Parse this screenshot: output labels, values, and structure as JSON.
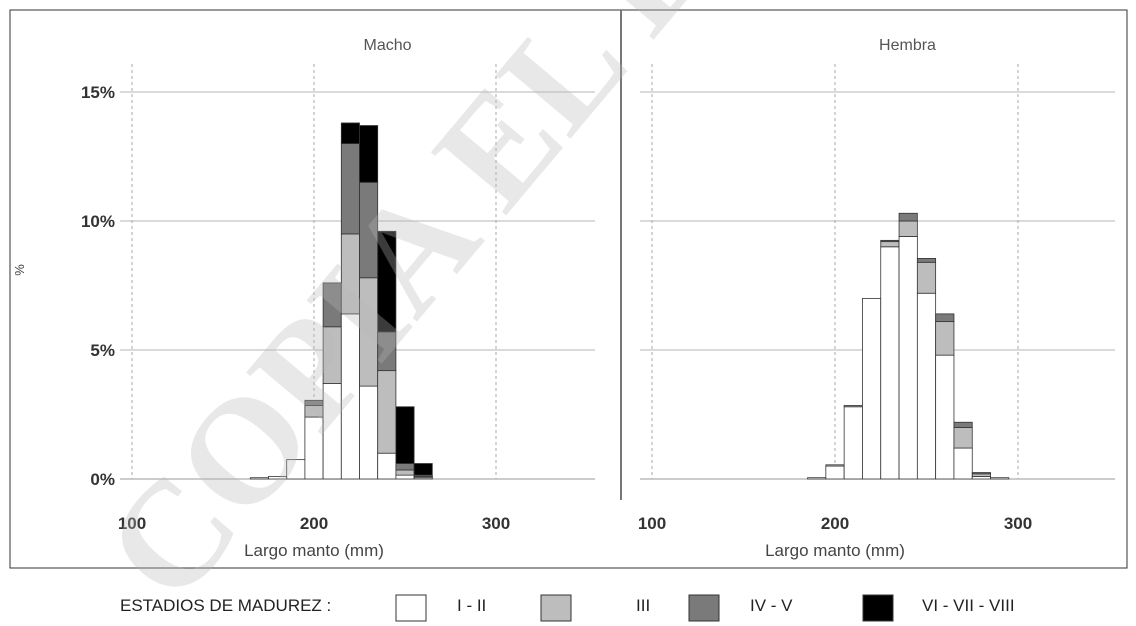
{
  "chart_data": {
    "type": "bar",
    "stacked": true,
    "ylabel": "%",
    "xlabel": "Largo manto (mm)",
    "ylim": [
      0,
      16
    ],
    "xlim": [
      100,
      350
    ],
    "bin_width": 10,
    "y_ticks": [
      {
        "value": 0,
        "label": "0%"
      },
      {
        "value": 5,
        "label": "5%"
      },
      {
        "value": 10,
        "label": "10%"
      },
      {
        "value": 15,
        "label": "15%"
      }
    ],
    "x_ticks": [
      {
        "value": 100,
        "label": "100"
      },
      {
        "value": 200,
        "label": "200"
      },
      {
        "value": 300,
        "label": "300"
      }
    ],
    "series_names": [
      "I - II",
      "III",
      "IV - V",
      "VI - VII - VIII"
    ],
    "series_colors": [
      "#ffffff",
      "#bdbdbd",
      "#7a7a7a",
      "#000000"
    ],
    "panels": [
      {
        "title": "Macho",
        "x": [
          170,
          180,
          190,
          200,
          210,
          220,
          230,
          240,
          250,
          260
        ],
        "series": [
          {
            "name": "I - II",
            "values": [
              0.05,
              0.1,
              0.75,
              2.4,
              3.7,
              6.4,
              3.6,
              1.0,
              0.15,
              0.05
            ]
          },
          {
            "name": "III",
            "values": [
              0,
              0,
              0,
              0.45,
              2.2,
              3.1,
              4.2,
              3.2,
              0.2,
              0.05
            ]
          },
          {
            "name": "IV - V",
            "values": [
              0,
              0,
              0,
              0.2,
              1.7,
              3.5,
              3.7,
              1.5,
              0.25,
              0.05
            ]
          },
          {
            "name": "VI - VII - VIII",
            "values": [
              0,
              0,
              0,
              0,
              0,
              0.8,
              2.2,
              3.9,
              2.2,
              0.45
            ]
          }
        ]
      },
      {
        "title": "Hembra",
        "x": [
          180,
          190,
          200,
          210,
          220,
          230,
          240,
          250,
          260,
          270,
          280,
          290
        ],
        "series": [
          {
            "name": "I - II",
            "values": [
              0,
              0.05,
              0.5,
              2.8,
              7.0,
              9.0,
              9.4,
              7.2,
              4.8,
              1.2,
              0.1,
              0.05
            ]
          },
          {
            "name": "III",
            "values": [
              0,
              0,
              0.05,
              0.05,
              0,
              0.2,
              0.6,
              1.2,
              1.3,
              0.8,
              0.1,
              0
            ]
          },
          {
            "name": "IV - V",
            "values": [
              0,
              0,
              0,
              0,
              0,
              0.05,
              0.3,
              0.15,
              0.3,
              0.2,
              0.05,
              0
            ]
          },
          {
            "name": "VI - VII - VIII",
            "values": [
              0,
              0,
              0,
              0,
              0,
              0,
              0,
              0,
              0,
              0,
              0,
              0
            ]
          }
        ]
      }
    ],
    "legend": {
      "title": "ESTADIOS DE MADUREZ :",
      "position": "bottom",
      "items": [
        "I - II",
        "III",
        "IV - V",
        "VI - VII - VIII"
      ]
    },
    "watermark": "COPIA EL EC"
  }
}
